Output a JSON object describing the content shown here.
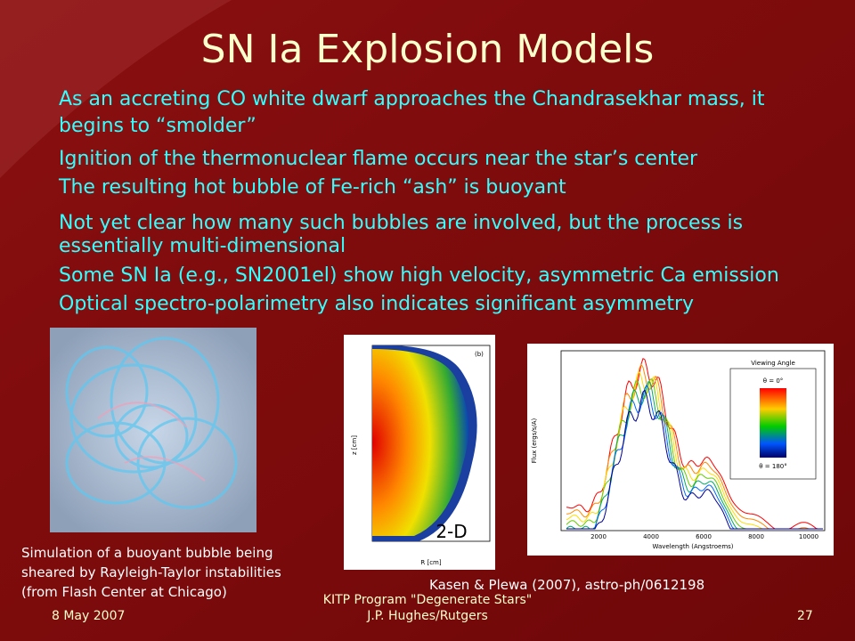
{
  "title": "SN Ia Explosion Models",
  "bullets": [
    [
      "As an accreting CO white dwarf approaches the Chandrasekhar mass, it",
      "begins to “smolder”"
    ],
    [
      "Ignition of the thermonuclear flame occurs near the star’s center"
    ],
    [
      "The resulting hot bubble of Fe-rich “ash” is buoyant"
    ],
    [
      "Not yet clear how many such bubbles are involved, but the process is",
      "essentially multi-dimensional"
    ],
    [
      "Some SN Ia  (e.g., SN2001el) show high velocity, asymmetric Ca emission"
    ],
    [
      "Optical spectro-polarimetry also indicates significant asymmetry"
    ]
  ],
  "figure_2d": {
    "panel": "(b)",
    "tag": "2-D",
    "y_axis": "z [cm]",
    "x_axis": "R [cm]"
  },
  "figure_spectrum": {
    "legend_title": "Viewing Angle",
    "legend_top": "θ = 0°",
    "legend_bottom": "θ = 180°",
    "x_axis": "Wavelength (Angstroems)",
    "y_axis": "Flux (ergs/s/A)",
    "xticks": [
      "2000",
      "4000",
      "6000",
      "8000",
      "10000"
    ]
  },
  "captions": {
    "simulation": [
      "Simulation of a buoyant bubble being",
      "sheared by Rayleigh-Taylor instabilities",
      "(from Flash Center at Chicago)"
    ],
    "reference": "Kasen & Plewa (2007), astro-ph/0612198"
  },
  "footer": {
    "date": "8 May 2007",
    "center": [
      "KITP Program \"Degenerate Stars\"",
      "J.P. Hughes/Rutgers"
    ],
    "page": "27"
  }
}
